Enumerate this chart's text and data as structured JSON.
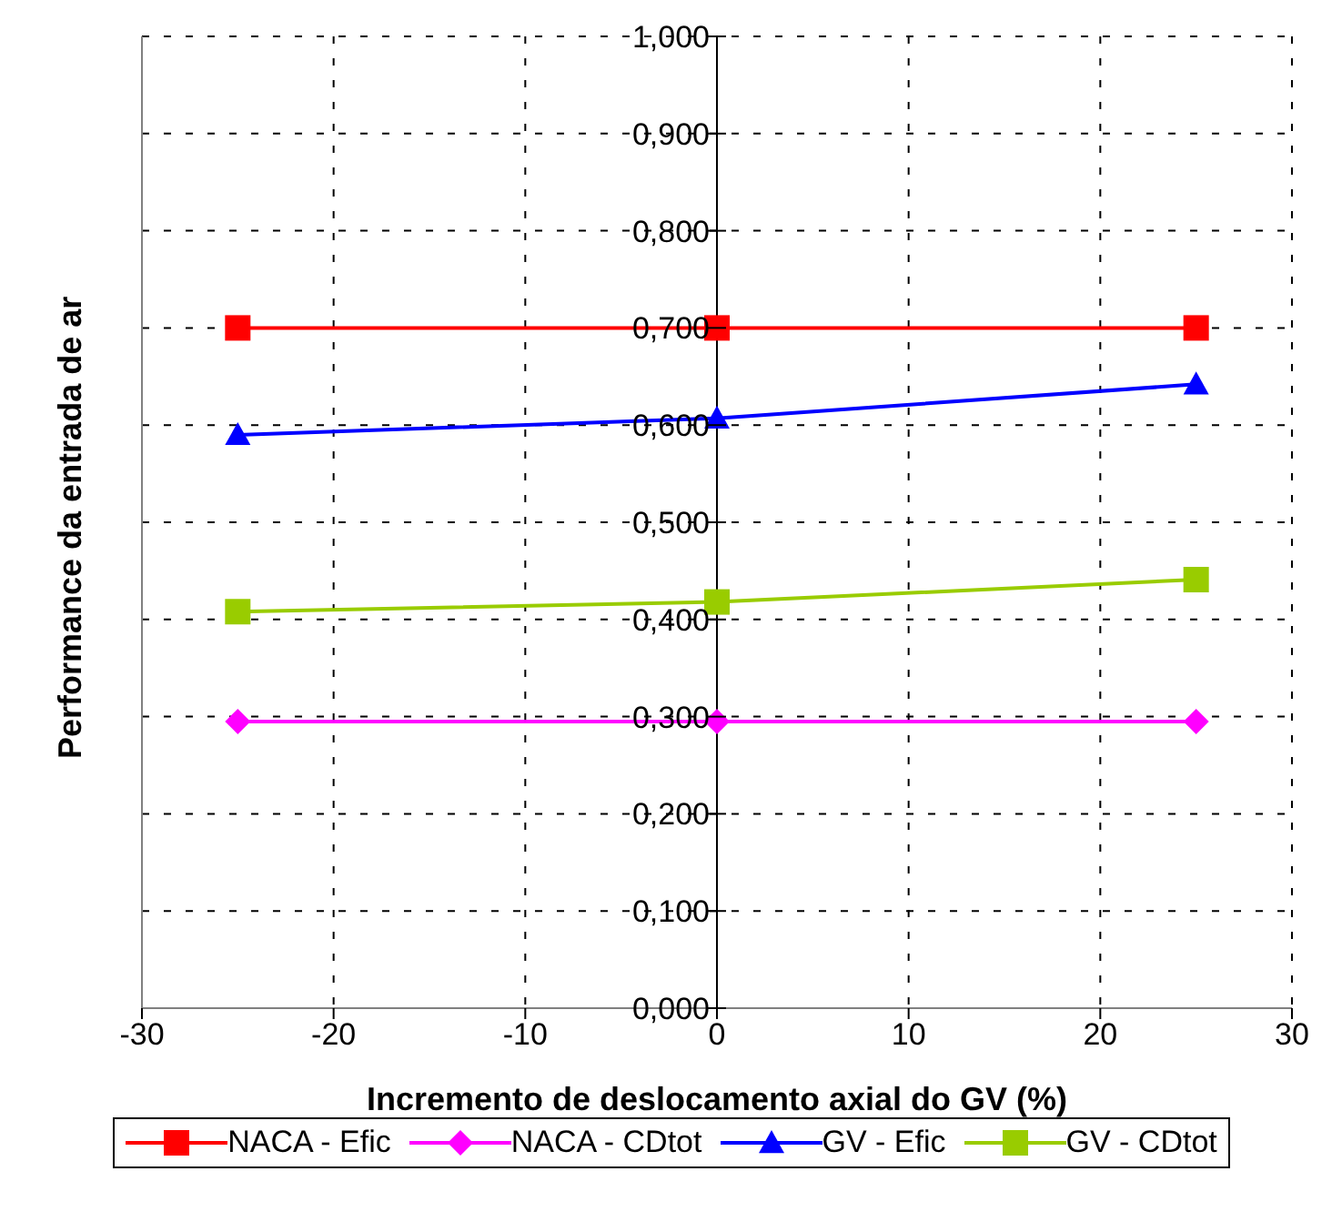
{
  "chart_data": {
    "type": "line",
    "xlabel": "Incremento de deslocamento axial do GV (%)",
    "ylabel": "Performance da entrada de ar",
    "x": [
      -25,
      0,
      25
    ],
    "series": [
      {
        "name": "NACA - Efic",
        "color": "#ff0000",
        "marker": "square",
        "values": [
          0.7,
          0.7,
          0.7
        ]
      },
      {
        "name": "NACA - CDtot",
        "color": "#ff00ff",
        "marker": "diamond",
        "values": [
          0.295,
          0.295,
          0.295
        ]
      },
      {
        "name": "GV - Efic",
        "color": "#0000ff",
        "marker": "triangle",
        "values": [
          0.59,
          0.607,
          0.642
        ]
      },
      {
        "name": "GV - CDtot",
        "color": "#99cc00",
        "marker": "square",
        "values": [
          0.408,
          0.418,
          0.441
        ]
      }
    ],
    "xlim": [
      -30,
      30
    ],
    "xticks": [
      -30,
      -20,
      -10,
      0,
      10,
      20,
      30
    ],
    "ylim": [
      0,
      1
    ],
    "yticks": [
      {
        "value": 0,
        "label": "0,000"
      },
      {
        "value": 0.1,
        "label": "0,100"
      },
      {
        "value": 0.2,
        "label": "0,200"
      },
      {
        "value": 0.3,
        "label": "0,300"
      },
      {
        "value": 0.4,
        "label": "0,400"
      },
      {
        "value": 0.5,
        "label": "0,500"
      },
      {
        "value": 0.6,
        "label": "0,600"
      },
      {
        "value": 0.7,
        "label": "0,700"
      },
      {
        "value": 0.8,
        "label": "0,800"
      },
      {
        "value": 0.9,
        "label": "0,900"
      },
      {
        "value": 1,
        "label": "1,000"
      }
    ],
    "grid": true,
    "legend": "bottom",
    "line_style": "solid"
  }
}
